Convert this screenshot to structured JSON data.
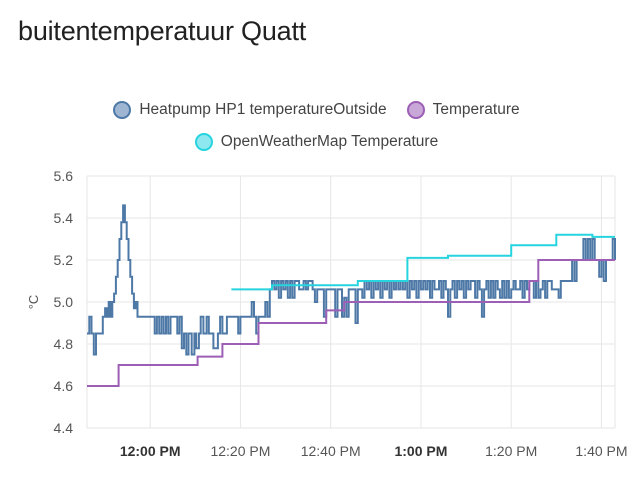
{
  "card": {
    "title": "buitentemperatuur Quatt"
  },
  "colors": {
    "heatpump": "#4e79a7",
    "heatpump_fill": "#9fb6d2",
    "temperature": "#9c5fb5",
    "temperature_fill": "#c9a7d8",
    "openweather": "#26d4e0",
    "openweather_fill": "#8de8ef",
    "grid": "#e6e6e6"
  },
  "chart_data": {
    "type": "line",
    "ylabel": "°C",
    "ylim": [
      4.4,
      5.6
    ],
    "yticks": [
      "4.4",
      "4.6",
      "4.8",
      "5.0",
      "5.2",
      "5.4",
      "5.6"
    ],
    "xticks": [
      {
        "label": "12:00 PM",
        "t": 0,
        "bold": true
      },
      {
        "label": "12:20 PM",
        "t": 20,
        "bold": false
      },
      {
        "label": "12:40 PM",
        "t": 40,
        "bold": false
      },
      {
        "label": "1:00 PM",
        "t": 60,
        "bold": true
      },
      {
        "label": "1:20 PM",
        "t": 80,
        "bold": false
      },
      {
        "label": "1:40 PM",
        "t": 100,
        "bold": false
      }
    ],
    "x_range_minutes_from_noon": [
      -14,
      103
    ],
    "series": [
      {
        "name": "Heatpump HP1 temperatureOutside",
        "key": "heatpump",
        "step": true,
        "points": [
          [
            -14,
            4.85
          ],
          [
            -13.5,
            4.93
          ],
          [
            -13,
            4.85
          ],
          [
            -12.5,
            4.75
          ],
          [
            -12,
            4.85
          ],
          [
            -11,
            4.85
          ],
          [
            -10.5,
            4.93
          ],
          [
            -10,
            4.97
          ],
          [
            -9.6,
            4.93
          ],
          [
            -9.2,
            5.0
          ],
          [
            -8.8,
            4.93
          ],
          [
            -8.4,
            5.0
          ],
          [
            -8,
            5.04
          ],
          [
            -7.6,
            5.12
          ],
          [
            -7.2,
            5.2
          ],
          [
            -6.8,
            5.3
          ],
          [
            -6.4,
            5.38
          ],
          [
            -6,
            5.46
          ],
          [
            -5.6,
            5.38
          ],
          [
            -5.2,
            5.3
          ],
          [
            -4.8,
            5.2
          ],
          [
            -4.4,
            5.12
          ],
          [
            -4,
            5.04
          ],
          [
            -3.6,
            4.97
          ],
          [
            -3.2,
            5.0
          ],
          [
            -2.8,
            4.93
          ],
          [
            1,
            4.85
          ],
          [
            1.5,
            4.93
          ],
          [
            2,
            4.85
          ],
          [
            2.5,
            4.93
          ],
          [
            3,
            4.85
          ],
          [
            3.5,
            4.93
          ],
          [
            4,
            4.85
          ],
          [
            4.5,
            4.93
          ],
          [
            6,
            4.85
          ],
          [
            6.5,
            4.93
          ],
          [
            7,
            4.78
          ],
          [
            7.5,
            4.85
          ],
          [
            8,
            4.75
          ],
          [
            8.5,
            4.85
          ],
          [
            9.2,
            4.75
          ],
          [
            9.8,
            4.85
          ],
          [
            10.2,
            4.78
          ],
          [
            10.8,
            4.85
          ],
          [
            11.2,
            4.93
          ],
          [
            11.8,
            4.85
          ],
          [
            12.5,
            4.93
          ],
          [
            13,
            4.85
          ],
          [
            14,
            4.78
          ],
          [
            15,
            4.85
          ],
          [
            15.5,
            4.93
          ],
          [
            16,
            4.85
          ],
          [
            17,
            4.93
          ],
          [
            19,
            4.93
          ],
          [
            19.5,
            4.85
          ],
          [
            20,
            4.93
          ],
          [
            22,
            4.93
          ],
          [
            22.5,
            5.0
          ],
          [
            23,
            4.93
          ],
          [
            23.5,
            4.85
          ],
          [
            24,
            4.93
          ],
          [
            25.5,
            5.0
          ],
          [
            26,
            4.93
          ],
          [
            26.5,
            5.06
          ],
          [
            27,
            5.1
          ],
          [
            27.5,
            5.06
          ],
          [
            28,
            5.1
          ],
          [
            28.5,
            5.02
          ],
          [
            29,
            5.1
          ],
          [
            29.5,
            5.06
          ],
          [
            30,
            5.1
          ],
          [
            30.5,
            5.02
          ],
          [
            31,
            5.1
          ],
          [
            31.5,
            5.02
          ],
          [
            32,
            5.1
          ],
          [
            33,
            5.06
          ],
          [
            34,
            5.1
          ],
          [
            34.5,
            5.06
          ],
          [
            35,
            5.1
          ],
          [
            36,
            5.06
          ],
          [
            36.5,
            5.0
          ],
          [
            37,
            5.06
          ],
          [
            38,
            5.06
          ],
          [
            38.5,
            4.93
          ],
          [
            39,
            5.06
          ],
          [
            40,
            5.06
          ],
          [
            41,
            4.93
          ],
          [
            41.5,
            5.06
          ],
          [
            42,
            5.06
          ],
          [
            42.5,
            4.93
          ],
          [
            43,
            5.02
          ],
          [
            43.5,
            4.93
          ],
          [
            44,
            5.06
          ],
          [
            45,
            5.06
          ],
          [
            45.5,
            4.9
          ],
          [
            46,
            5.06
          ],
          [
            47,
            5.02
          ],
          [
            47.5,
            5.1
          ],
          [
            48,
            5.06
          ],
          [
            48.5,
            5.1
          ],
          [
            49,
            5.02
          ],
          [
            49.5,
            5.1
          ],
          [
            50,
            5.06
          ],
          [
            50.5,
            5.1
          ],
          [
            51,
            5.02
          ],
          [
            51.5,
            5.1
          ],
          [
            52,
            5.06
          ],
          [
            52.5,
            5.1
          ],
          [
            53,
            5.02
          ],
          [
            53.5,
            5.1
          ],
          [
            54,
            5.06
          ],
          [
            54.5,
            5.1
          ],
          [
            55,
            5.06
          ],
          [
            55.5,
            5.1
          ],
          [
            56,
            5.06
          ],
          [
            56.5,
            5.1
          ],
          [
            57,
            5.02
          ],
          [
            57.5,
            5.1
          ],
          [
            58,
            5.06
          ],
          [
            58.5,
            5.1
          ],
          [
            59,
            5.02
          ],
          [
            59.5,
            5.1
          ],
          [
            60,
            5.06
          ],
          [
            60.5,
            5.1
          ],
          [
            61,
            5.06
          ],
          [
            61.5,
            5.1
          ],
          [
            62,
            5.02
          ],
          [
            62.5,
            5.1
          ],
          [
            63,
            5.06
          ],
          [
            64,
            5.1
          ],
          [
            64.5,
            5.02
          ],
          [
            65,
            5.1
          ],
          [
            65.5,
            5.06
          ],
          [
            66,
            4.93
          ],
          [
            66.5,
            5.06
          ],
          [
            67,
            5.1
          ],
          [
            67.5,
            5.02
          ],
          [
            68,
            5.1
          ],
          [
            68.5,
            5.06
          ],
          [
            69,
            5.1
          ],
          [
            69.5,
            5.02
          ],
          [
            70,
            5.1
          ],
          [
            70.5,
            5.06
          ],
          [
            71,
            5.1
          ],
          [
            72,
            5.02
          ],
          [
            72.5,
            5.1
          ],
          [
            73,
            5.06
          ],
          [
            73.5,
            4.93
          ],
          [
            74,
            5.06
          ],
          [
            74.5,
            5.1
          ],
          [
            75,
            5.02
          ],
          [
            75.5,
            5.1
          ],
          [
            76,
            5.02
          ],
          [
            76.5,
            5.1
          ],
          [
            77,
            5.06
          ],
          [
            77.5,
            5.02
          ],
          [
            78,
            5.1
          ],
          [
            78.5,
            5.02
          ],
          [
            79,
            5.1
          ],
          [
            79.5,
            5.02
          ],
          [
            80,
            5.06
          ],
          [
            80.5,
            5.1
          ],
          [
            81,
            5.06
          ],
          [
            82,
            5.1
          ],
          [
            82.5,
            5.02
          ],
          [
            83,
            5.1
          ],
          [
            83.5,
            5.06
          ],
          [
            84,
            5.1
          ],
          [
            85,
            5.02
          ],
          [
            85.5,
            5.1
          ],
          [
            86,
            5.02
          ],
          [
            86.5,
            5.06
          ],
          [
            87,
            5.1
          ],
          [
            87.5,
            5.02
          ],
          [
            88,
            5.1
          ],
          [
            89,
            5.06
          ],
          [
            90,
            5.06
          ],
          [
            90.5,
            5.02
          ],
          [
            91,
            5.1
          ],
          [
            92,
            5.1
          ],
          [
            93,
            5.1
          ],
          [
            93.5,
            5.2
          ],
          [
            94,
            5.1
          ],
          [
            94.5,
            5.2
          ],
          [
            95,
            5.2
          ],
          [
            95.5,
            5.2
          ],
          [
            96,
            5.3
          ],
          [
            96.5,
            5.2
          ],
          [
            97,
            5.3
          ],
          [
            97.5,
            5.2
          ],
          [
            98,
            5.3
          ],
          [
            98.5,
            5.2
          ],
          [
            99,
            5.2
          ],
          [
            99.5,
            5.12
          ],
          [
            100,
            5.2
          ],
          [
            100.5,
            5.1
          ],
          [
            101,
            5.2
          ],
          [
            102,
            5.2
          ],
          [
            102.5,
            5.3
          ],
          [
            103,
            5.2
          ]
        ]
      },
      {
        "name": "Temperature",
        "key": "temperature",
        "step": true,
        "points": [
          [
            -14,
            4.6
          ],
          [
            -7,
            4.6
          ],
          [
            -7,
            4.7
          ],
          [
            10.5,
            4.7
          ],
          [
            10.5,
            4.74
          ],
          [
            16,
            4.74
          ],
          [
            16,
            4.8
          ],
          [
            24,
            4.8
          ],
          [
            24,
            4.9
          ],
          [
            39,
            4.9
          ],
          [
            39,
            4.96
          ],
          [
            43,
            4.96
          ],
          [
            43,
            5.0
          ],
          [
            84,
            5.0
          ],
          [
            84,
            5.1
          ],
          [
            86,
            5.1
          ],
          [
            86,
            5.2
          ],
          [
            96,
            5.2
          ],
          [
            96,
            5.2
          ],
          [
            103,
            5.2
          ]
        ]
      },
      {
        "name": "OpenWeatherMap Temperature",
        "key": "openweather",
        "step": true,
        "points": [
          [
            18,
            5.06
          ],
          [
            27,
            5.06
          ],
          [
            27,
            5.08
          ],
          [
            46,
            5.08
          ],
          [
            46,
            5.1
          ],
          [
            57,
            5.1
          ],
          [
            57,
            5.21
          ],
          [
            66,
            5.21
          ],
          [
            66,
            5.22
          ],
          [
            80,
            5.22
          ],
          [
            80,
            5.27
          ],
          [
            90,
            5.27
          ],
          [
            90,
            5.32
          ],
          [
            98,
            5.32
          ],
          [
            98,
            5.31
          ],
          [
            103,
            5.31
          ]
        ]
      }
    ]
  },
  "legend": [
    {
      "label": "Heatpump HP1 temperatureOutside",
      "key": "heatpump"
    },
    {
      "label": "Temperature",
      "key": "temperature"
    },
    {
      "label": "OpenWeatherMap Temperature",
      "key": "openweather"
    }
  ]
}
